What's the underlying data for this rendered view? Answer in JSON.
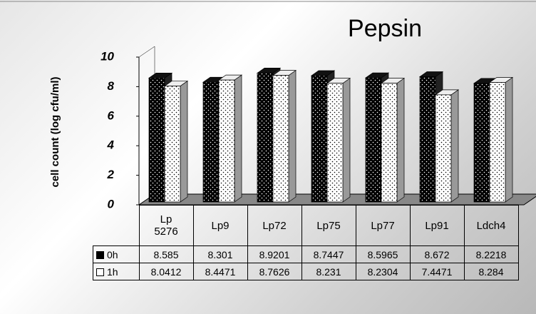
{
  "chart_data": {
    "type": "bar",
    "title": "Pepsin",
    "y_label": "cell count (log cfu/ml)",
    "categories": [
      "Lp 5276",
      "Lp9",
      "Lp72",
      "Lp75",
      "Lp77",
      "Lp91",
      "Ldch4"
    ],
    "series": [
      {
        "name": "0h",
        "color": "#000000",
        "values": [
          8.585,
          8.301,
          8.9201,
          8.7447,
          8.5965,
          8.672,
          8.2218
        ]
      },
      {
        "name": "1h",
        "color": "#ffffff",
        "values": [
          8.0412,
          8.4471,
          8.7626,
          8.231,
          8.2304,
          7.4471,
          8.284
        ]
      }
    ],
    "ylim": [
      0,
      10
    ],
    "yticks": [
      0,
      2,
      4,
      6,
      8,
      10
    ]
  }
}
